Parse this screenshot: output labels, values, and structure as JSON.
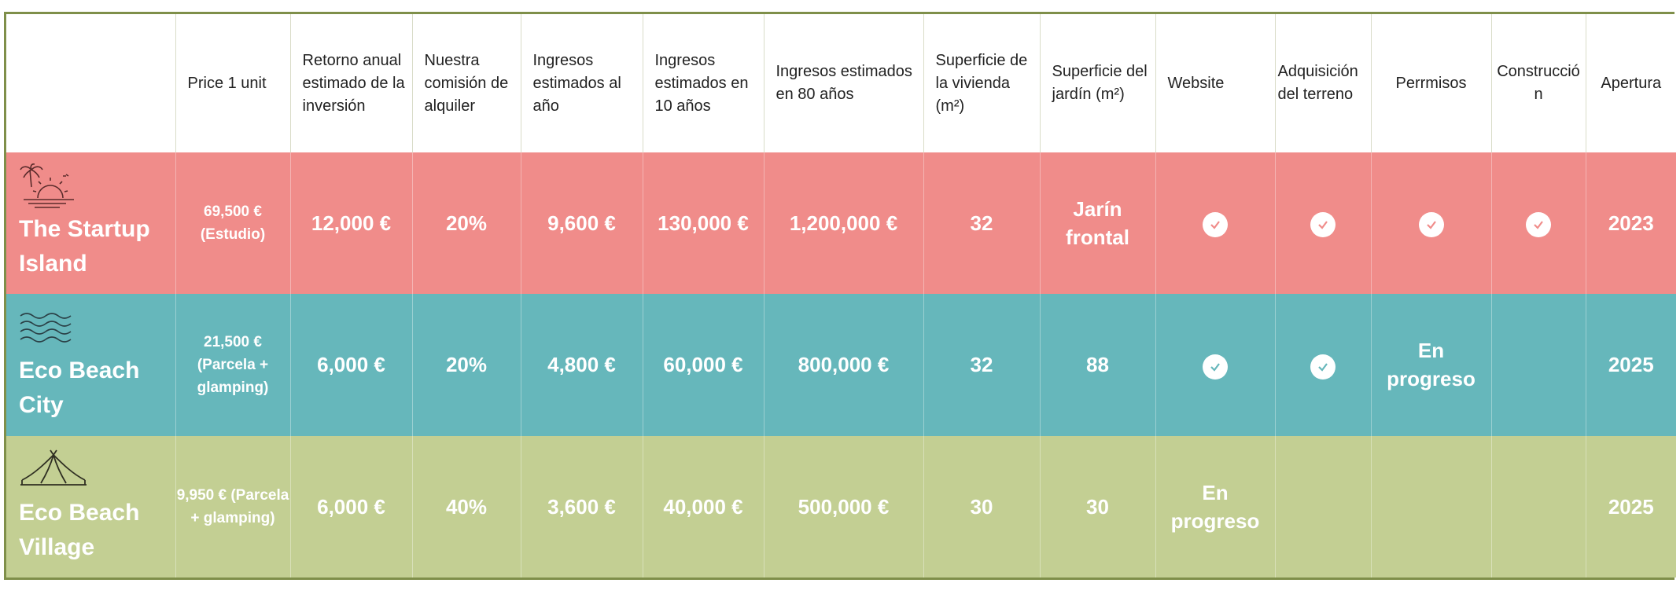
{
  "colors": {
    "row1": "#f08c8a",
    "row2": "#66b7bb",
    "row3": "#c3cf93",
    "border": "#7f8f4a"
  },
  "headers": [
    "",
    "Price 1 unit",
    "Retorno anual estimado de la inversión",
    "Nuestra comisión de alquiler",
    "Ingresos estimados al año",
    "Ingresos estimados en 10 años",
    "Ingresos estimados en 80 años",
    "Superficie de la vivienda (m²)",
    "Superficie del jardín (m²)",
    "Website",
    "Adquisición del terreno",
    "Perrmisos",
    "Construcción",
    "Apertura"
  ],
  "rows": [
    {
      "icon": "palm-sunset-icon",
      "name": "The Startup Island",
      "price": "69,500 € (Estudio)",
      "retorno": "12,000 €",
      "comision": "20%",
      "ingresos_ano": "9,600 €",
      "ingresos_10": "130,000 €",
      "ingresos_80": "1,200,000 €",
      "sup_vivienda": "32",
      "sup_jardin": "Jarín frontal",
      "website": "check",
      "terreno": "check",
      "permisos": "check",
      "construccion": "check",
      "apertura": "2023"
    },
    {
      "icon": "waves-icon",
      "name": "Eco Beach City",
      "price": "21,500 € (Parcela + glamping)",
      "retorno": "6,000 €",
      "comision": "20%",
      "ingresos_ano": "4,800 €",
      "ingresos_10": "60,000 €",
      "ingresos_80": "800,000 €",
      "sup_vivienda": "32",
      "sup_jardin": "88",
      "website": "check",
      "terreno": "check",
      "permisos": "En progreso",
      "construccion": "",
      "apertura": "2025"
    },
    {
      "icon": "tent-icon",
      "name": "Eco Beach Village",
      "price": "9,950 € (Parcela + glamping)",
      "retorno": "6,000 €",
      "comision": "40%",
      "ingresos_ano": "3,600 €",
      "ingresos_10": "40,000 €",
      "ingresos_80": "500,000 €",
      "sup_vivienda": "30",
      "sup_jardin": "30",
      "website": "En progreso",
      "terreno": "",
      "permisos": "",
      "construccion": "",
      "apertura": "2025"
    }
  ]
}
